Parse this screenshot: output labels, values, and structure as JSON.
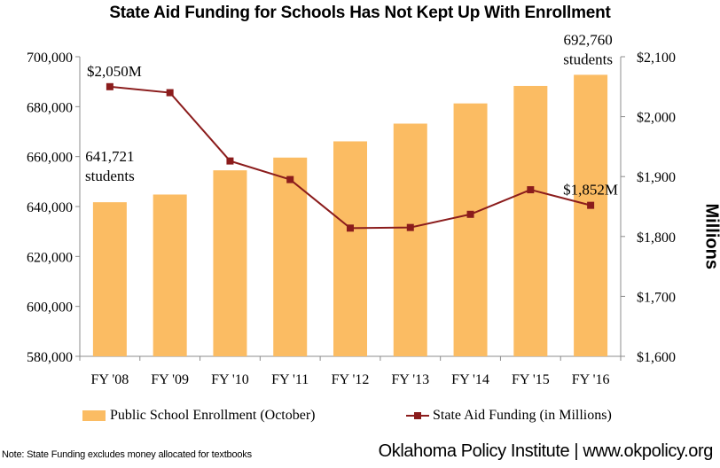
{
  "title": "State Aid Funding for Schools Has Not Kept Up With Enrollment",
  "chart_data": {
    "type": "bar",
    "categories": [
      "FY '08",
      "FY '09",
      "FY '10",
      "FY '11",
      "FY '12",
      "FY '13",
      "FY '14",
      "FY '15",
      "FY '16"
    ],
    "series": [
      {
        "name": "Public School Enrollment (October)",
        "type": "bar",
        "axis": "left",
        "color": "#fbbc63",
        "values": [
          641721,
          644800,
          654500,
          659600,
          666100,
          673200,
          681300,
          688300,
          692760
        ]
      },
      {
        "name": "State Aid Funding (in Millions)",
        "type": "line",
        "axis": "right",
        "color": "#8b1c1c",
        "values": [
          2050,
          2040,
          1926,
          1895,
          1814,
          1815,
          1837,
          1878,
          1852
        ]
      }
    ],
    "y_left": {
      "ylim": [
        580000,
        700000
      ],
      "ticks": [
        "580,000",
        "600,000",
        "620,000",
        "640,000",
        "660,000",
        "680,000",
        "700,000"
      ]
    },
    "y_right": {
      "label": "Millions",
      "ylim": [
        1600,
        2100
      ],
      "ticks": [
        "$1,600",
        "$1,700",
        "$1,800",
        "$1,900",
        "$2,000",
        "$2,100"
      ]
    },
    "annotations": [
      {
        "lines": [
          "641,721",
          "students"
        ]
      },
      {
        "lines": [
          "692,760",
          "students"
        ]
      },
      {
        "lines": [
          "$2,050M"
        ]
      },
      {
        "lines": [
          "$1,852M"
        ]
      }
    ],
    "legend_position": "bottom",
    "grid": false
  },
  "legend": {
    "bar_label": "Public School Enrollment (October)",
    "line_label": "State Aid Funding (in Millions)"
  },
  "footnote": "Note: State Funding excludes money allocated for textbooks",
  "source": "Oklahoma Policy Institute | www.okpolicy.org"
}
